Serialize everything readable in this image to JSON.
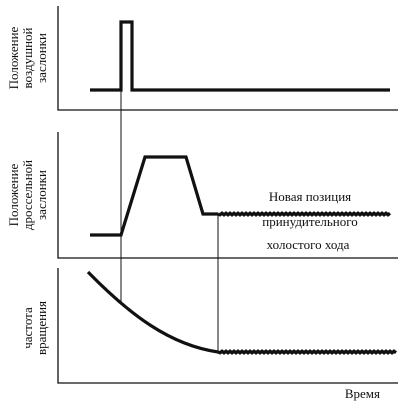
{
  "panels": [
    {
      "label": [
        "Положение",
        "воздушной",
        "заслонки"
      ]
    },
    {
      "label": [
        "Положение",
        "дроссельной",
        "заслонки"
      ]
    },
    {
      "label": [
        "частота",
        "вращения"
      ]
    }
  ],
  "annotation": [
    "Новая позиция",
    "принудительного",
    "холостого хода"
  ],
  "x_label": "Время"
}
